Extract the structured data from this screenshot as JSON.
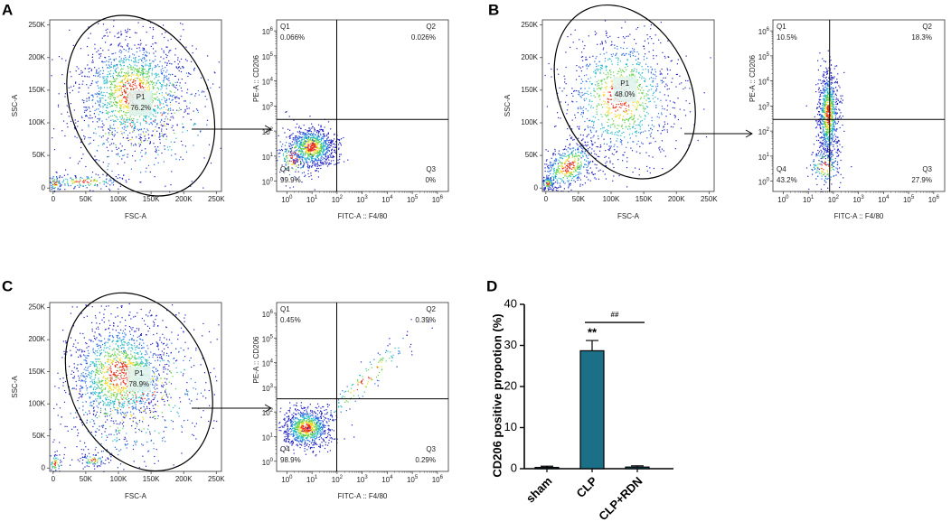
{
  "scatter_axes": {
    "x_label": "FSC-A",
    "y_label": "SSC-A",
    "ticks": [
      "0",
      "50K",
      "100K",
      "150K",
      "200K",
      "250K"
    ]
  },
  "quadrant_axes": {
    "x_label": "FITC-A :: F4/80",
    "y_label": "PE-A :: CD206",
    "tick_base": "10",
    "tick_exponents": [
      "0",
      "1",
      "2",
      "3",
      "4",
      "5",
      "6"
    ]
  },
  "panels": [
    {
      "label": "A",
      "gate": "P1",
      "gate_value": "76.2%",
      "quadrants": [
        {
          "name": "Q1",
          "value": "0.066%"
        },
        {
          "name": "Q2",
          "value": "0.026%"
        },
        {
          "name": "Q3",
          "value": "0%"
        },
        {
          "name": "Q4",
          "value": "99.9%"
        }
      ]
    },
    {
      "label": "B",
      "gate": "P1",
      "gate_value": "48.0%",
      "quadrants": [
        {
          "name": "Q1",
          "value": "10.5%"
        },
        {
          "name": "Q2",
          "value": "18.3%"
        },
        {
          "name": "Q3",
          "value": "27.9%"
        },
        {
          "name": "Q4",
          "value": "43.2%"
        }
      ]
    },
    {
      "label": "C",
      "gate": "P1",
      "gate_value": "78.9%",
      "quadrants": [
        {
          "name": "Q1",
          "value": "0.45%"
        },
        {
          "name": "Q2",
          "value": "0.39%"
        },
        {
          "name": "Q3",
          "value": "0.29%"
        },
        {
          "name": "Q4",
          "value": "98.9%"
        }
      ]
    }
  ],
  "chart_data": {
    "type": "bar",
    "label": "D",
    "y_label": "CD206 positive propotion (%)",
    "categories": [
      "sham",
      "CLP",
      "CLP+RDN"
    ],
    "values": [
      0.3,
      28.7,
      0.4
    ],
    "errors": [
      0.3,
      2.5,
      0.3
    ],
    "color": "#1b6f86",
    "ylim": [
      0,
      40
    ],
    "yticks": [
      0,
      10,
      20,
      30,
      40
    ],
    "annotations": [
      {
        "text": "**",
        "category": 1
      },
      {
        "text": "##",
        "from": 1,
        "to": 2
      }
    ]
  }
}
